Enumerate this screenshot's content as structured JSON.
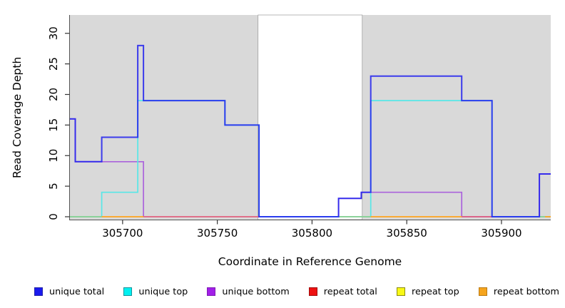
{
  "chart_data": {
    "type": "line",
    "subtype": "step-post",
    "title": "",
    "xlabel": "Coordinate in Reference Genome",
    "ylabel": "Read Coverage Depth",
    "xlim": [
      305672,
      305926
    ],
    "ylim": [
      0,
      33
    ],
    "x_ticks": [
      305700,
      305750,
      305800,
      305850,
      305900
    ],
    "y_ticks": [
      0,
      5,
      10,
      15,
      20,
      25,
      30
    ],
    "grid": false,
    "legend_position": "bottom",
    "plot_background": "#D9D9D9",
    "uncovered_gap_region": {
      "x1": 305771.5,
      "x2": 305826.5,
      "color": "#FFFFFF",
      "border": "#999999"
    },
    "axis_color": "#555555",
    "tick_color": "#333333",
    "series": [
      {
        "name": "unique total",
        "legend_fill": "#1A1AEE",
        "legend_border": "#2323A8",
        "line_color": "#2020EE",
        "line_opacity": 0.85,
        "line_width": 2,
        "paths": [
          [
            [
              305672,
              16
            ],
            [
              305675,
              9
            ],
            [
              305689,
              13
            ],
            [
              305708,
              28
            ],
            [
              305711,
              19
            ],
            [
              305754,
              15
            ],
            [
              305772,
              0
            ],
            [
              305814,
              3
            ],
            [
              305826,
              4
            ],
            [
              305831,
              23
            ],
            [
              305879,
              19
            ],
            [
              305895,
              0
            ],
            [
              305920,
              7
            ],
            [
              305926,
              7
            ]
          ]
        ]
      },
      {
        "name": "unique top",
        "legend_fill": "#00F0F0",
        "legend_border": "#12949C",
        "line_color": "#58E7E7",
        "line_opacity": 1,
        "line_width": 1.7,
        "paths": [
          [
            [
              305672,
              0
            ],
            [
              305689,
              4
            ],
            [
              305708,
              19
            ],
            [
              305754,
              15
            ],
            [
              305772,
              0
            ],
            [
              305831,
              19
            ],
            [
              305895,
              0
            ],
            [
              305926,
              0
            ]
          ]
        ]
      },
      {
        "name": "unique bottom",
        "legend_fill": "#A21FE8",
        "legend_border": "#7E1BB5",
        "line_color": "#AB63DC",
        "line_opacity": 1,
        "line_width": 1.7,
        "paths": [
          [
            [
              305672,
              16
            ],
            [
              305675,
              9
            ],
            [
              305711,
              0
            ]
          ],
          [
            [
              305772,
              0
            ],
            [
              305814,
              3
            ],
            [
              305826,
              4
            ],
            [
              305879,
              0
            ],
            [
              305920,
              7
            ],
            [
              305926,
              7
            ]
          ]
        ]
      },
      {
        "name": "repeat total",
        "legend_fill": "#EE1111",
        "legend_border": "#A00D0D",
        "line_color": "#E0607E",
        "line_opacity": 1,
        "line_width": 1.8,
        "paths": [
          [
            [
              305711,
              0
            ],
            [
              305772,
              0
            ]
          ],
          [
            [
              305879,
              0
            ],
            [
              305895,
              0
            ]
          ]
        ]
      },
      {
        "name": "repeat top",
        "legend_fill": "#F8F816",
        "legend_border": "#8C8C12",
        "line_color": "#8FCF8F",
        "line_opacity": 1,
        "line_width": 1.8,
        "paths": [
          [
            [
              305672,
              0
            ],
            [
              305689,
              0
            ]
          ],
          [
            [
              305814,
              0
            ],
            [
              305831,
              0
            ]
          ],
          [
            [
              305920,
              0
            ],
            [
              305923,
              0
            ]
          ]
        ]
      },
      {
        "name": "repeat bottom",
        "legend_fill": "#F5A41D",
        "legend_border": "#BA7A12",
        "line_color": "#FFA41E",
        "line_opacity": 1,
        "line_width": 1.8,
        "paths": [
          [
            [
              305689,
              0
            ],
            [
              305711,
              0
            ]
          ],
          [
            [
              305831,
              0
            ],
            [
              305879,
              0
            ]
          ],
          [
            [
              305923,
              0
            ],
            [
              305926,
              0
            ]
          ]
        ]
      }
    ],
    "draw_order": [
      2,
      1,
      3,
      4,
      5,
      0
    ]
  }
}
